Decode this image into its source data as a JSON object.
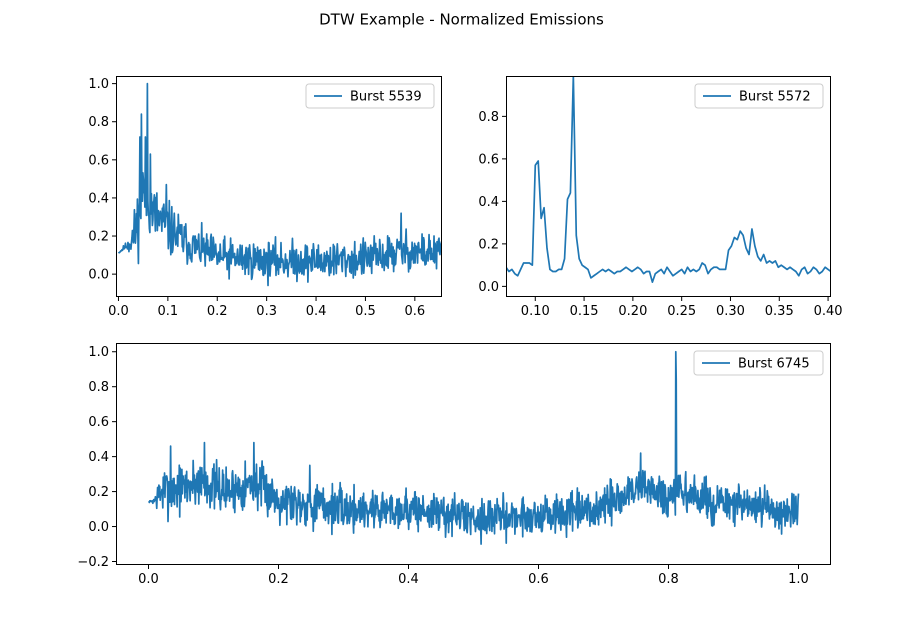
{
  "figure": {
    "title": "DTW Example - Normalized Emissions",
    "line_color": "#1f77b4"
  },
  "chart_data": [
    {
      "type": "line",
      "series": [
        {
          "name": "Burst 5539",
          "points": []
        }
      ],
      "xlim": [
        -0.005,
        0.655
      ],
      "ylim": [
        -0.12,
        1.04
      ],
      "xticks": [
        0.0,
        0.1,
        0.2,
        0.3,
        0.4,
        0.5,
        0.6
      ],
      "xtick_labels": [
        "0.0",
        "0.1",
        "0.2",
        "0.3",
        "0.4",
        "0.5",
        "0.6"
      ],
      "yticks": [
        0.0,
        0.2,
        0.4,
        0.6,
        0.8,
        1.0
      ],
      "ytick_labels": [
        "0.0",
        "0.2",
        "0.4",
        "0.6",
        "0.8",
        "1.0"
      ],
      "legend": "top-right",
      "grid": false,
      "shape": {
        "n": 650,
        "x_start": 0.0,
        "x_end": 0.655,
        "seed": 11,
        "baseline": [
          [
            0.0,
            0.11
          ],
          [
            0.02,
            0.16
          ],
          [
            0.035,
            0.22
          ],
          [
            0.05,
            0.45
          ],
          [
            0.07,
            0.32
          ],
          [
            0.1,
            0.24
          ],
          [
            0.14,
            0.16
          ],
          [
            0.2,
            0.09
          ],
          [
            0.3,
            0.07
          ],
          [
            0.4,
            0.07
          ],
          [
            0.5,
            0.08
          ],
          [
            0.58,
            0.12
          ],
          [
            0.655,
            0.11
          ]
        ],
        "noise": [
          [
            0.0,
            0.0
          ],
          [
            0.015,
            0.01
          ],
          [
            0.04,
            0.09
          ],
          [
            0.1,
            0.07
          ],
          [
            0.15,
            0.05
          ],
          [
            0.655,
            0.05
          ]
        ],
        "peaks": [
          [
            0.059,
            1.0
          ],
          [
            0.046,
            0.84
          ],
          [
            0.043,
            0.72
          ],
          [
            0.054,
            0.72
          ],
          [
            0.065,
            0.63
          ],
          [
            0.097,
            0.47
          ],
          [
            0.572,
            0.32
          ]
        ]
      }
    },
    {
      "type": "line",
      "series": [
        {
          "name": "Burst 5572",
          "points": [
            [
              0.07,
              0.09
            ],
            [
              0.073,
              0.07
            ],
            [
              0.076,
              0.08
            ],
            [
              0.079,
              0.06
            ],
            [
              0.082,
              0.05
            ],
            [
              0.085,
              0.08
            ],
            [
              0.088,
              0.11
            ],
            [
              0.091,
              0.11
            ],
            [
              0.094,
              0.11
            ],
            [
              0.097,
              0.1
            ],
            [
              0.1,
              0.57
            ],
            [
              0.103,
              0.59
            ],
            [
              0.106,
              0.32
            ],
            [
              0.109,
              0.37
            ],
            [
              0.112,
              0.18
            ],
            [
              0.115,
              0.08
            ],
            [
              0.118,
              0.07
            ],
            [
              0.121,
              0.07
            ],
            [
              0.124,
              0.08
            ],
            [
              0.127,
              0.08
            ],
            [
              0.13,
              0.13
            ],
            [
              0.133,
              0.41
            ],
            [
              0.136,
              0.44
            ],
            [
              0.139,
              0.99
            ],
            [
              0.142,
              0.24
            ],
            [
              0.145,
              0.13
            ],
            [
              0.148,
              0.1
            ],
            [
              0.151,
              0.09
            ],
            [
              0.154,
              0.08
            ],
            [
              0.157,
              0.04
            ],
            [
              0.16,
              0.05
            ],
            [
              0.163,
              0.06
            ],
            [
              0.166,
              0.07
            ],
            [
              0.169,
              0.08
            ],
            [
              0.172,
              0.07
            ],
            [
              0.175,
              0.08
            ],
            [
              0.178,
              0.07
            ],
            [
              0.181,
              0.06
            ],
            [
              0.184,
              0.07
            ],
            [
              0.187,
              0.07
            ],
            [
              0.19,
              0.08
            ],
            [
              0.193,
              0.09
            ],
            [
              0.196,
              0.08
            ],
            [
              0.199,
              0.07
            ],
            [
              0.202,
              0.08
            ],
            [
              0.205,
              0.09
            ],
            [
              0.208,
              0.08
            ],
            [
              0.211,
              0.06
            ],
            [
              0.214,
              0.07
            ],
            [
              0.217,
              0.07
            ],
            [
              0.22,
              0.02
            ],
            [
              0.223,
              0.06
            ],
            [
              0.226,
              0.07
            ],
            [
              0.229,
              0.08
            ],
            [
              0.232,
              0.06
            ],
            [
              0.235,
              0.09
            ],
            [
              0.238,
              0.07
            ],
            [
              0.241,
              0.05
            ],
            [
              0.244,
              0.06
            ],
            [
              0.247,
              0.07
            ],
            [
              0.25,
              0.08
            ],
            [
              0.253,
              0.06
            ],
            [
              0.256,
              0.09
            ],
            [
              0.259,
              0.07
            ],
            [
              0.262,
              0.08
            ],
            [
              0.265,
              0.07
            ],
            [
              0.268,
              0.08
            ],
            [
              0.271,
              0.11
            ],
            [
              0.274,
              0.1
            ],
            [
              0.277,
              0.06
            ],
            [
              0.28,
              0.08
            ],
            [
              0.283,
              0.09
            ],
            [
              0.286,
              0.09
            ],
            [
              0.289,
              0.08
            ],
            [
              0.292,
              0.08
            ],
            [
              0.295,
              0.08
            ],
            [
              0.298,
              0.17
            ],
            [
              0.301,
              0.19
            ],
            [
              0.304,
              0.23
            ],
            [
              0.307,
              0.22
            ],
            [
              0.31,
              0.26
            ],
            [
              0.313,
              0.24
            ],
            [
              0.316,
              0.18
            ],
            [
              0.319,
              0.15
            ],
            [
              0.322,
              0.27
            ],
            [
              0.325,
              0.19
            ],
            [
              0.328,
              0.14
            ],
            [
              0.331,
              0.12
            ],
            [
              0.334,
              0.15
            ],
            [
              0.337,
              0.11
            ],
            [
              0.34,
              0.12
            ],
            [
              0.343,
              0.11
            ],
            [
              0.346,
              0.12
            ],
            [
              0.349,
              0.09
            ],
            [
              0.352,
              0.1
            ],
            [
              0.355,
              0.09
            ],
            [
              0.358,
              0.08
            ],
            [
              0.361,
              0.09
            ],
            [
              0.364,
              0.08
            ],
            [
              0.367,
              0.07
            ],
            [
              0.37,
              0.05
            ],
            [
              0.373,
              0.08
            ],
            [
              0.376,
              0.09
            ],
            [
              0.379,
              0.06
            ],
            [
              0.382,
              0.07
            ],
            [
              0.385,
              0.09
            ],
            [
              0.388,
              0.08
            ],
            [
              0.391,
              0.06
            ],
            [
              0.394,
              0.07
            ],
            [
              0.397,
              0.09
            ],
            [
              0.4,
              0.08
            ],
            [
              0.403,
              0.07
            ]
          ]
        }
      ],
      "xlim": [
        0.07,
        0.403
      ],
      "ylim": [
        -0.05,
        0.99
      ],
      "xticks": [
        0.1,
        0.15,
        0.2,
        0.25,
        0.3,
        0.35,
        0.4
      ],
      "xtick_labels": [
        "0.10",
        "0.15",
        "0.20",
        "0.25",
        "0.30",
        "0.35",
        "0.40"
      ],
      "yticks": [
        0.0,
        0.2,
        0.4,
        0.6,
        0.8
      ],
      "ytick_labels": [
        "0.0",
        "0.2",
        "0.4",
        "0.6",
        "0.8"
      ],
      "legend": "top-right",
      "grid": false
    },
    {
      "type": "line",
      "series": [
        {
          "name": "Burst 6745",
          "points": []
        }
      ],
      "xlim": [
        -0.05,
        1.05
      ],
      "ylim": [
        -0.22,
        1.05
      ],
      "xticks": [
        0.0,
        0.2,
        0.4,
        0.6,
        0.8,
        1.0
      ],
      "xtick_labels": [
        "0.0",
        "0.2",
        "0.4",
        "0.6",
        "0.8",
        "1.0"
      ],
      "yticks": [
        -0.2,
        0.0,
        0.2,
        0.4,
        0.6,
        0.8,
        1.0
      ],
      "ytick_labels": [
        "−0.2",
        "0.0",
        "0.2",
        "0.4",
        "0.6",
        "0.8",
        "1.0"
      ],
      "legend": "top-right",
      "grid": false,
      "shape": {
        "n": 1500,
        "x_start": 0.0,
        "x_end": 1.0,
        "seed": 7,
        "baseline": [
          [
            0.0,
            0.14
          ],
          [
            0.01,
            0.15
          ],
          [
            0.02,
            0.2
          ],
          [
            0.05,
            0.22
          ],
          [
            0.08,
            0.26
          ],
          [
            0.12,
            0.2
          ],
          [
            0.16,
            0.25
          ],
          [
            0.2,
            0.16
          ],
          [
            0.3,
            0.1
          ],
          [
            0.4,
            0.1
          ],
          [
            0.5,
            0.05
          ],
          [
            0.6,
            0.06
          ],
          [
            0.68,
            0.08
          ],
          [
            0.72,
            0.15
          ],
          [
            0.76,
            0.24
          ],
          [
            0.79,
            0.18
          ],
          [
            0.8,
            0.12
          ],
          [
            0.82,
            0.2
          ],
          [
            0.86,
            0.14
          ],
          [
            0.9,
            0.12
          ],
          [
            1.0,
            0.08
          ]
        ],
        "noise": [
          [
            0.0,
            0.0
          ],
          [
            0.008,
            0.01
          ],
          [
            0.02,
            0.07
          ],
          [
            0.2,
            0.065
          ],
          [
            0.5,
            0.055
          ],
          [
            0.7,
            0.06
          ],
          [
            1.0,
            0.055
          ]
        ],
        "peaks": [
          [
            0.811,
            1.0
          ],
          [
            0.812,
            0.84
          ],
          [
            0.757,
            0.42
          ],
          [
            0.162,
            0.48
          ],
          [
            0.086,
            0.48
          ],
          [
            0.034,
            0.46
          ],
          [
            0.248,
            0.35
          ]
        ]
      }
    }
  ]
}
